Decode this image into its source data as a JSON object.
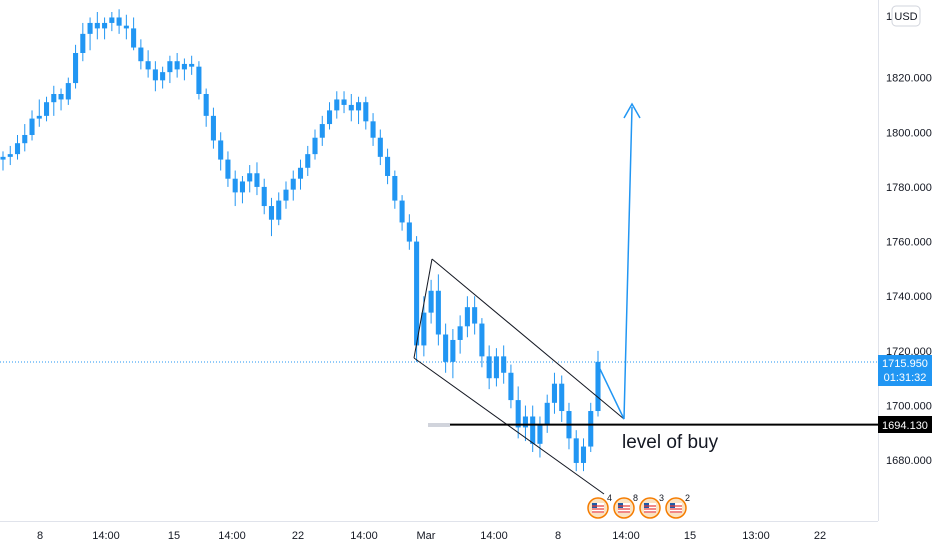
{
  "currency_button": "USD",
  "price_tag": {
    "value": "1715.950",
    "countdown": "01:31:32"
  },
  "level_tag": {
    "value": "1694.130"
  },
  "annotation": "level of buy",
  "event_labels": [
    "4",
    "8",
    "3",
    "2"
  ],
  "colors": {
    "candle": "#2196f3",
    "arrow": "#2196f3",
    "level_line": "#000000",
    "price_line": "#2196f3"
  },
  "chart_data": {
    "type": "candlestick",
    "y_axis": {
      "ticks": [
        "1820.000",
        "1800.000",
        "1780.000",
        "1760.000",
        "1740.000",
        "1720.000",
        "1700.000",
        "1680.000"
      ],
      "top_partial": "18",
      "ylim": [
        1666,
        1838
      ]
    },
    "x_axis": {
      "ticks": [
        "8",
        "14:00",
        "15",
        "14:00",
        "22",
        "14:00",
        "Mar",
        "14:00",
        "8",
        "14:00",
        "15",
        "13:00",
        "22"
      ]
    },
    "last_price": 1715.95,
    "buy_level": 1694.13,
    "candles": [
      [
        1790,
        1793,
        1786,
        1791
      ],
      [
        1791,
        1795,
        1788,
        1792
      ],
      [
        1792,
        1799,
        1790,
        1796
      ],
      [
        1796,
        1803,
        1793,
        1799
      ],
      [
        1799,
        1808,
        1797,
        1805
      ],
      [
        1805,
        1812,
        1802,
        1806
      ],
      [
        1806,
        1813,
        1804,
        1811
      ],
      [
        1811,
        1817,
        1806,
        1814
      ],
      [
        1814,
        1816,
        1808,
        1812
      ],
      [
        1812,
        1820,
        1810,
        1818
      ],
      [
        1818,
        1832,
        1816,
        1829
      ],
      [
        1829,
        1840,
        1826,
        1836
      ],
      [
        1836,
        1842,
        1830,
        1840
      ],
      [
        1840,
        1844,
        1834,
        1838
      ],
      [
        1838,
        1842,
        1834,
        1840
      ],
      [
        1840,
        1844,
        1837,
        1842
      ],
      [
        1842,
        1845,
        1836,
        1839
      ],
      [
        1839,
        1843,
        1834,
        1838
      ],
      [
        1838,
        1842,
        1830,
        1831
      ],
      [
        1831,
        1834,
        1823,
        1826
      ],
      [
        1826,
        1830,
        1820,
        1823
      ],
      [
        1823,
        1826,
        1815,
        1819
      ],
      [
        1819,
        1824,
        1816,
        1822
      ],
      [
        1822,
        1828,
        1818,
        1826
      ],
      [
        1826,
        1829,
        1820,
        1823
      ],
      [
        1823,
        1827,
        1819,
        1825
      ],
      [
        1825,
        1828,
        1821,
        1824
      ],
      [
        1824,
        1826,
        1812,
        1814
      ],
      [
        1814,
        1816,
        1802,
        1806
      ],
      [
        1806,
        1809,
        1794,
        1797
      ],
      [
        1797,
        1800,
        1786,
        1790
      ],
      [
        1790,
        1793,
        1780,
        1783
      ],
      [
        1783,
        1786,
        1773,
        1778
      ],
      [
        1778,
        1784,
        1774,
        1782
      ],
      [
        1782,
        1788,
        1778,
        1785
      ],
      [
        1785,
        1789,
        1777,
        1780
      ],
      [
        1780,
        1783,
        1770,
        1773
      ],
      [
        1773,
        1776,
        1762,
        1768
      ],
      [
        1768,
        1778,
        1766,
        1775
      ],
      [
        1775,
        1782,
        1772,
        1779
      ],
      [
        1779,
        1786,
        1775,
        1783
      ],
      [
        1783,
        1790,
        1779,
        1787
      ],
      [
        1787,
        1795,
        1784,
        1792
      ],
      [
        1792,
        1801,
        1790,
        1798
      ],
      [
        1798,
        1806,
        1795,
        1803
      ],
      [
        1803,
        1811,
        1801,
        1808
      ],
      [
        1808,
        1815,
        1805,
        1812
      ],
      [
        1812,
        1815,
        1807,
        1810
      ],
      [
        1810,
        1814,
        1804,
        1808
      ],
      [
        1808,
        1813,
        1803,
        1811
      ],
      [
        1811,
        1813,
        1801,
        1804
      ],
      [
        1804,
        1807,
        1795,
        1798
      ],
      [
        1798,
        1801,
        1788,
        1791
      ],
      [
        1791,
        1794,
        1781,
        1784
      ],
      [
        1784,
        1786,
        1772,
        1775
      ],
      [
        1775,
        1777,
        1764,
        1767
      ],
      [
        1767,
        1770,
        1757,
        1760
      ],
      [
        1760,
        1762,
        1716,
        1722
      ],
      [
        1722,
        1740,
        1718,
        1734
      ],
      [
        1734,
        1746,
        1730,
        1742
      ],
      [
        1742,
        1748,
        1722,
        1726
      ],
      [
        1726,
        1730,
        1712,
        1716
      ],
      [
        1716,
        1728,
        1710,
        1724
      ],
      [
        1724,
        1733,
        1719,
        1729
      ],
      [
        1729,
        1740,
        1725,
        1736
      ],
      [
        1736,
        1740,
        1726,
        1730
      ],
      [
        1730,
        1732,
        1714,
        1718
      ],
      [
        1718,
        1722,
        1706,
        1710
      ],
      [
        1710,
        1721,
        1707,
        1718
      ],
      [
        1718,
        1722,
        1708,
        1712
      ],
      [
        1712,
        1715,
        1699,
        1702
      ],
      [
        1702,
        1707,
        1688,
        1692
      ],
      [
        1692,
        1700,
        1687,
        1696
      ],
      [
        1696,
        1700,
        1683,
        1686
      ],
      [
        1686,
        1696,
        1681,
        1693
      ],
      [
        1693,
        1704,
        1690,
        1701
      ],
      [
        1701,
        1712,
        1697,
        1708
      ],
      [
        1708,
        1711,
        1694,
        1698
      ],
      [
        1698,
        1701,
        1684,
        1688
      ],
      [
        1688,
        1691,
        1676,
        1679
      ],
      [
        1679,
        1688,
        1676,
        1685
      ],
      [
        1685,
        1701,
        1683,
        1698
      ],
      [
        1698,
        1720,
        1696,
        1716
      ]
    ]
  }
}
